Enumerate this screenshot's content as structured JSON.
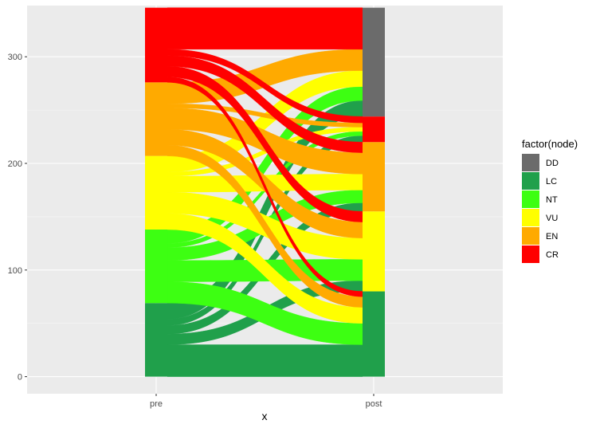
{
  "chart_data": {
    "type": "alluvial",
    "xlabel": "x",
    "ylabel": "",
    "ylim": [
      -16,
      348
    ],
    "yticks": [
      0,
      100,
      200,
      300
    ],
    "ytick_labels": [
      "0",
      "100",
      "200",
      "300"
    ],
    "categories": [
      "pre",
      "post"
    ],
    "legend": {
      "title": "factor(node)",
      "placement": "right",
      "entries": [
        {
          "label": "DD",
          "color": "#6b6b6b"
        },
        {
          "label": "LC",
          "color": "#20a04b"
        },
        {
          "label": "NT",
          "color": "#3dff12"
        },
        {
          "label": "VU",
          "color": "#ffff00"
        },
        {
          "label": "EN",
          "color": "#ffaa00"
        },
        {
          "label": "CR",
          "color": "#ff0000"
        }
      ]
    },
    "nodes": {
      "pre": [
        {
          "node": "LC",
          "value": 69
        },
        {
          "node": "NT",
          "value": 69
        },
        {
          "node": "VU",
          "value": 69
        },
        {
          "node": "EN",
          "value": 69
        },
        {
          "node": "CR",
          "value": 70
        }
      ],
      "post": [
        {
          "node": "LC",
          "value": 80
        },
        {
          "node": "VU",
          "value": 75
        },
        {
          "node": "EN",
          "value": 65
        },
        {
          "node": "CR",
          "value": 24
        },
        {
          "node": "DD",
          "value": 102
        }
      ]
    },
    "flows": [
      {
        "from": "LC",
        "to": "LC",
        "value": 30
      },
      {
        "from": "NT",
        "to": "LC",
        "value": 20
      },
      {
        "from": "VU",
        "to": "LC",
        "value": 15
      },
      {
        "from": "EN",
        "to": "LC",
        "value": 10
      },
      {
        "from": "CR",
        "to": "LC",
        "value": 5
      },
      {
        "from": "LC",
        "to": "VU",
        "value": 10
      },
      {
        "from": "NT",
        "to": "VU",
        "value": 20
      },
      {
        "from": "VU",
        "to": "VU",
        "value": 20
      },
      {
        "from": "EN",
        "to": "VU",
        "value": 15
      },
      {
        "from": "CR",
        "to": "VU",
        "value": 10
      },
      {
        "from": "LC",
        "to": "EN",
        "value": 8
      },
      {
        "from": "NT",
        "to": "EN",
        "value": 12
      },
      {
        "from": "VU",
        "to": "EN",
        "value": 15
      },
      {
        "from": "EN",
        "to": "EN",
        "value": 20
      },
      {
        "from": "CR",
        "to": "EN",
        "value": 10
      },
      {
        "from": "LC",
        "to": "CR",
        "value": 6
      },
      {
        "from": "NT",
        "to": "CR",
        "value": 4
      },
      {
        "from": "VU",
        "to": "CR",
        "value": 4
      },
      {
        "from": "EN",
        "to": "CR",
        "value": 4
      },
      {
        "from": "CR",
        "to": "CR",
        "value": 6
      },
      {
        "from": "LC",
        "to": "DD",
        "value": 15
      },
      {
        "from": "NT",
        "to": "DD",
        "value": 13
      },
      {
        "from": "VU",
        "to": "DD",
        "value": 15
      },
      {
        "from": "EN",
        "to": "DD",
        "value": 20
      },
      {
        "from": "CR",
        "to": "DD",
        "value": 39
      }
    ]
  }
}
